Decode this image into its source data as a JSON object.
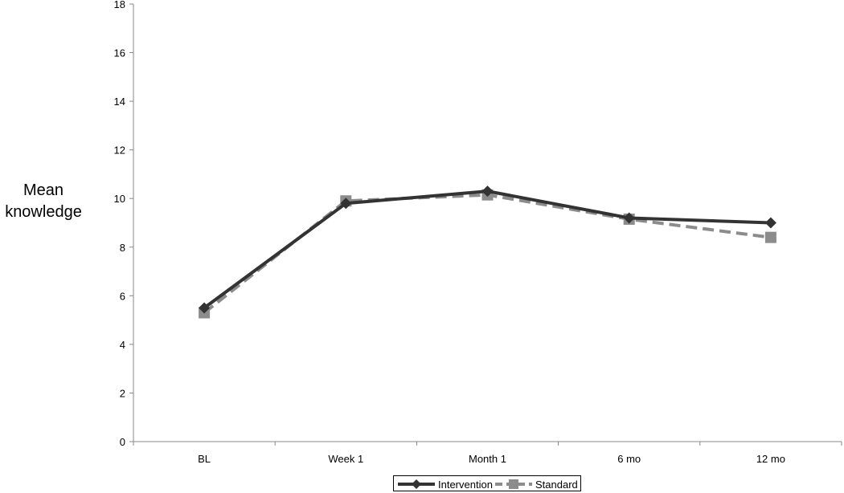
{
  "chart_data": {
    "type": "line",
    "title": "",
    "xlabel": "",
    "ylabel": "Mean knowledge",
    "ylabel_lines": [
      "Mean",
      "knowledge"
    ],
    "categories": [
      "BL",
      "Week 1",
      "Month 1",
      "6 mo",
      "12 mo"
    ],
    "ylim": [
      0,
      18
    ],
    "yticks": [
      0,
      2,
      4,
      6,
      8,
      10,
      12,
      14,
      16,
      18
    ],
    "grid": false,
    "legend_position": "bottom",
    "series": [
      {
        "name": "Intervention",
        "values": [
          5.5,
          9.8,
          10.3,
          9.2,
          9.0
        ],
        "color": "#333333",
        "marker": "diamond",
        "style": "solid"
      },
      {
        "name": "Standard",
        "values": [
          5.3,
          9.9,
          10.15,
          9.15,
          8.4
        ],
        "color": "#8c8c8c",
        "marker": "square",
        "style": "dashed"
      }
    ]
  }
}
